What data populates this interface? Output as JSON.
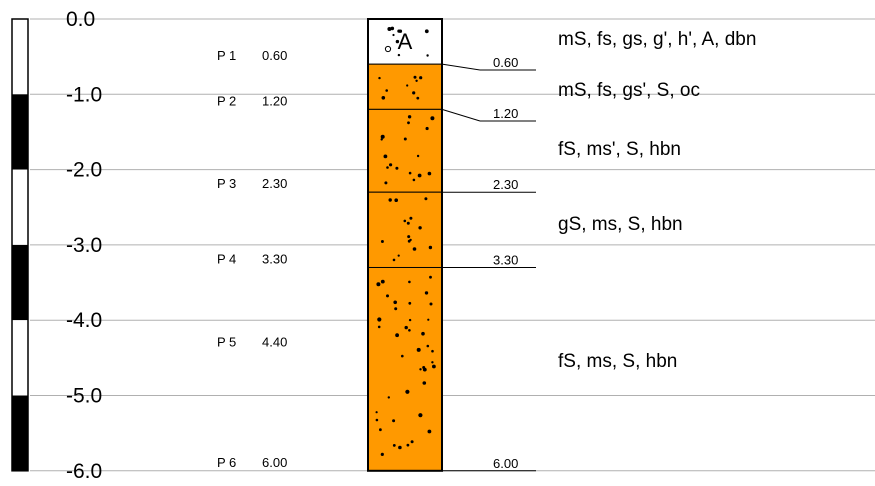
{
  "colors": {
    "sand": "#FF9900",
    "fill_top": "#FFFFFF",
    "grid": "#B0B0B0",
    "ink": "#000000"
  },
  "depth_axis": {
    "min": 0,
    "max": 6,
    "step": 1,
    "labels": [
      "0.0",
      "-1.0",
      "-2.0",
      "-3.0",
      "-4.0",
      "-5.0",
      "-6.0"
    ]
  },
  "samples": [
    {
      "id": "P 1",
      "depth_text": "0.60",
      "depth": 0.6
    },
    {
      "id": "P 2",
      "depth_text": "1.20",
      "depth": 1.2
    },
    {
      "id": "P 3",
      "depth_text": "2.30",
      "depth": 2.3
    },
    {
      "id": "P 4",
      "depth_text": "3.30",
      "depth": 3.3
    },
    {
      "id": "P 5",
      "depth_text": "4.40",
      "depth": 4.4
    },
    {
      "id": "P 6",
      "depth_text": "6.00",
      "depth": 6.0
    }
  ],
  "layers": [
    {
      "top": 0.0,
      "bottom": 0.6,
      "fill": "white",
      "symbol": "A",
      "bottom_text": "0.60",
      "description": "mS, fs, gs, g', h', A, dbn"
    },
    {
      "top": 0.6,
      "bottom": 1.2,
      "fill": "sand",
      "bottom_text": "1.20",
      "description": "mS, fs, gs', S, oc"
    },
    {
      "top": 1.2,
      "bottom": 2.3,
      "fill": "sand",
      "bottom_text": "2.30",
      "description": "fS, ms', S, hbn"
    },
    {
      "top": 2.3,
      "bottom": 3.3,
      "fill": "sand",
      "bottom_text": "3.30",
      "description": "gS, ms, S, hbn"
    },
    {
      "top": 3.3,
      "bottom": 6.0,
      "fill": "sand",
      "bottom_text": "6.00",
      "description": "fS, ms, S, hbn"
    }
  ]
}
